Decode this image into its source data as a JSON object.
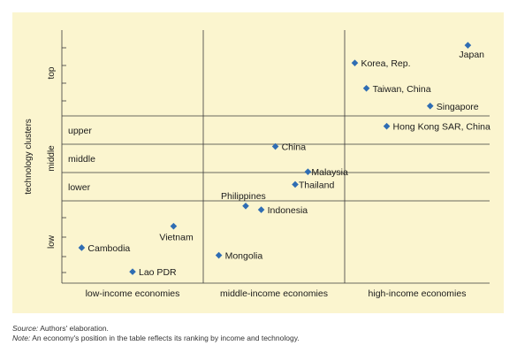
{
  "chart_data": {
    "type": "scatter",
    "ylabel": "technology clusters",
    "columns": [
      "low-income economies",
      "middle-income economies",
      "high-income economies"
    ],
    "rows": [
      "low",
      "middle",
      "top"
    ],
    "middle_subrows": [
      "lower",
      "middle",
      "upper"
    ],
    "points": [
      {
        "name": "Japan",
        "col": 2,
        "x": 0.85,
        "y": 0.94
      },
      {
        "name": "Korea, Rep.",
        "col": 2,
        "x": 0.07,
        "y": 0.87
      },
      {
        "name": "Taiwan, China",
        "col": 2,
        "x": 0.15,
        "y": 0.77
      },
      {
        "name": "Singapore",
        "col": 2,
        "x": 0.59,
        "y": 0.7
      },
      {
        "name": "Hong Kong SAR, China",
        "col": 2,
        "x": 0.29,
        "y": 0.62
      },
      {
        "name": "China",
        "col": 1,
        "x": 0.51,
        "y": 0.54
      },
      {
        "name": "Malaysia",
        "col": 1,
        "x": 0.74,
        "y": 0.44
      },
      {
        "name": "Thailand",
        "col": 1,
        "x": 0.65,
        "y": 0.39
      },
      {
        "name": "Philippines",
        "col": 1,
        "x": 0.3,
        "y": 0.305
      },
      {
        "name": "Indonesia",
        "col": 1,
        "x": 0.41,
        "y": 0.29
      },
      {
        "name": "Vietnam",
        "col": 0,
        "x": 0.79,
        "y": 0.225
      },
      {
        "name": "Cambodia",
        "col": 0,
        "x": 0.14,
        "y": 0.14
      },
      {
        "name": "Mongolia",
        "col": 1,
        "x": 0.11,
        "y": 0.11
      },
      {
        "name": "Lao PDR",
        "col": 0,
        "x": 0.5,
        "y": 0.045
      }
    ]
  },
  "source_label": "Source:",
  "source_text": "Authors' elaboration.",
  "note_label": "Note:",
  "note_text": "An economy's position in the table reflects its ranking by income and technology."
}
